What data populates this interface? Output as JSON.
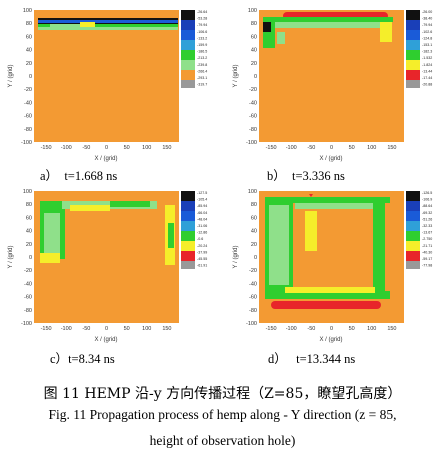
{
  "panels": [
    {
      "label": "a）",
      "time": "t=1.668 ns",
      "colorbar": [
        "-26.64",
        "-53.28",
        "-79.94",
        "-106.6",
        "-133.2",
        "-159.9",
        "-186.5",
        "-213.2",
        "-239.8",
        "-266.4",
        "-293.1",
        "-319.7"
      ]
    },
    {
      "label": "b）",
      "time": "t=3.336 ns",
      "colorbar": [
        "-26.00",
        "-38.40",
        "-79.94",
        "-102.6",
        "-124.8",
        "-153.1",
        "-182.3",
        "-1.532",
        "-1.824",
        "-13.44",
        "-17.44",
        "-20.88"
      ]
    },
    {
      "label": "c）",
      "time": "t=8.34 ns",
      "colorbar": [
        "-127.5",
        "-105.4",
        "-85.94",
        "-66.04",
        "-48.04",
        "-31.06",
        "-12.86",
        "-0.6",
        "-20.24",
        "-37.99",
        "-45.55",
        "-61.91"
      ]
    },
    {
      "label": "d）",
      "time": "t=13.344 ns",
      "colorbar": [
        "-126.5",
        "-106.9",
        "-88.64",
        "-69.32",
        "-51.26",
        "-32.33",
        "-13.67",
        "-2.750",
        "-21.71",
        "-40.30",
        "-59.17",
        "-77.98"
      ]
    }
  ],
  "axes": {
    "xlabel": "X / (grid)",
    "ylabel": "Y / (grid)",
    "xticks": [
      "-150",
      "-100",
      "-50",
      "0",
      "50",
      "100",
      "150"
    ],
    "yticks": [
      "100",
      "80",
      "60",
      "40",
      "20",
      "0",
      "-20",
      "-40",
      "-60",
      "-80",
      "-100"
    ]
  },
  "colors": {
    "orange": "#f39a33",
    "yellow": "#f5ee2a",
    "green": "#2fce2f",
    "lightgreen": "#8fe08a",
    "red": "#e8252a",
    "blue": "#1a5bd8",
    "black": "#111111"
  },
  "caption": {
    "zh": "图 11 HEMP 沿-y 方向传播过程（Z=85，瞭望孔高度）",
    "en_line1": "Fig. 11 Propagation process of hemp along - Y direction (z = 85,",
    "en_line2": "height of observation hole)"
  }
}
